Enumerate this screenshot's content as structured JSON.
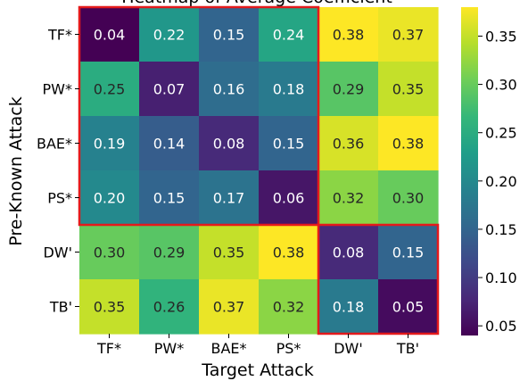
{
  "chart_data": {
    "type": "heatmap",
    "title": "Heatmap of Average Coefficient",
    "xlabel": "Target Attack",
    "ylabel": "Pre-Known Attack",
    "x_categories": [
      "TF*",
      "PW*",
      "BAE*",
      "PS*",
      "DW'",
      "TB'"
    ],
    "y_categories": [
      "TF*",
      "PW*",
      "BAE*",
      "PS*",
      "DW'",
      "TB'"
    ],
    "values": [
      [
        0.04,
        0.22,
        0.15,
        0.24,
        0.38,
        0.37
      ],
      [
        0.25,
        0.07,
        0.16,
        0.18,
        0.29,
        0.35
      ],
      [
        0.19,
        0.14,
        0.08,
        0.15,
        0.36,
        0.38
      ],
      [
        0.2,
        0.15,
        0.17,
        0.06,
        0.32,
        0.3
      ],
      [
        0.3,
        0.29,
        0.35,
        0.38,
        0.08,
        0.15
      ],
      [
        0.35,
        0.26,
        0.37,
        0.32,
        0.18,
        0.05
      ]
    ],
    "value_labels": [
      [
        "0.04",
        "0.22",
        "0.15",
        "0.24",
        "0.38",
        "0.37"
      ],
      [
        "0.25",
        "0.07",
        "0.16",
        "0.18",
        "0.29",
        "0.35"
      ],
      [
        "0.19",
        "0.14",
        "0.08",
        "0.15",
        "0.36",
        "0.38"
      ],
      [
        "0.20",
        "0.15",
        "0.17",
        "0.06",
        "0.32",
        "0.30"
      ],
      [
        "0.30",
        "0.29",
        "0.35",
        "0.38",
        "0.08",
        "0.15"
      ],
      [
        "0.35",
        "0.26",
        "0.37",
        "0.32",
        "0.18",
        "0.05"
      ]
    ],
    "colorscale": "viridis",
    "color_range": [
      0.04,
      0.38
    ],
    "colorbar": {
      "ticks": [
        0.05,
        0.1,
        0.15,
        0.2,
        0.25,
        0.3,
        0.35
      ],
      "tick_labels": [
        "0.05",
        "0.10",
        "0.15",
        "0.20",
        "0.25",
        "0.30",
        "0.35"
      ]
    },
    "highlight_boxes": [
      {
        "rows": [
          0,
          3
        ],
        "cols": [
          0,
          3
        ],
        "color": "#e41a1c"
      },
      {
        "rows": [
          4,
          5
        ],
        "cols": [
          4,
          5
        ],
        "color": "#e41a1c"
      }
    ]
  }
}
